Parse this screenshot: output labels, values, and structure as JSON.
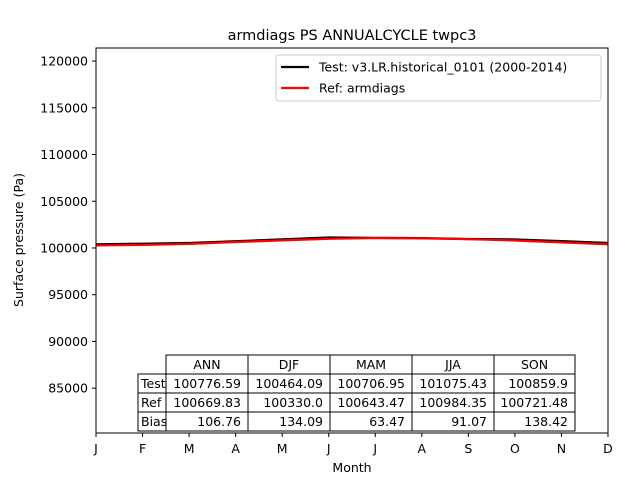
{
  "chart_data": {
    "type": "line",
    "title": "armdiags PS ANNUALCYCLE twpc3",
    "xlabel": "Month",
    "ylabel": "Surface pressure (Pa)",
    "x": [
      "J",
      "F",
      "M",
      "A",
      "M",
      "J",
      "J",
      "A",
      "S",
      "O",
      "N",
      "D"
    ],
    "ylim": [
      80200,
      121400
    ],
    "yticks": [
      85000,
      90000,
      95000,
      100000,
      105000,
      110000,
      115000,
      120000
    ],
    "ytick_labels": [
      "85000",
      "90000",
      "95000",
      "100000",
      "105000",
      "110000",
      "115000",
      "120000"
    ],
    "grid": false,
    "legend_position": "top-right",
    "series": [
      {
        "name": "Test: v3.LR.historical_0101 (2000-2014)",
        "color": "#000000",
        "values": [
          100390,
          100460,
          100540,
          100720,
          100920,
          101120,
          101090,
          101060,
          100960,
          100910,
          100730,
          100540
        ]
      },
      {
        "name": "Ref: armdiags",
        "color": "#ff0000",
        "values": [
          100270,
          100330,
          100430,
          100640,
          100810,
          100980,
          101060,
          101030,
          100940,
          100800,
          100600,
          100400
        ]
      }
    ],
    "table": {
      "columns": [
        "ANN",
        "DJF",
        "MAM",
        "JJA",
        "SON"
      ],
      "rows": [
        {
          "label": "Test",
          "cells": [
            "100776.59",
            "100464.09",
            "100706.95",
            "101075.43",
            "100859.9"
          ]
        },
        {
          "label": "Ref",
          "cells": [
            "100669.83",
            "100330.0",
            "100643.47",
            "100984.35",
            "100721.48"
          ]
        },
        {
          "label": "Bias",
          "cells": [
            "106.76",
            "134.09",
            "63.47",
            "91.07",
            "138.42"
          ]
        }
      ]
    }
  }
}
